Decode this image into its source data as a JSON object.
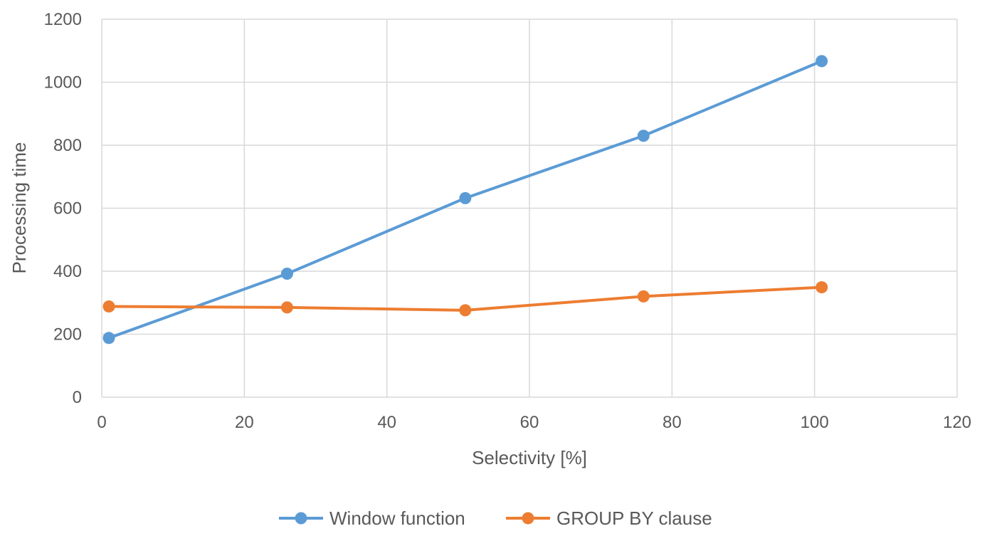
{
  "chart_data": {
    "type": "scatter",
    "title": "",
    "xlabel": "Selectivity [%]",
    "ylabel": "Processing time",
    "xlim": [
      0,
      120
    ],
    "ylim": [
      0,
      1200
    ],
    "x_ticks": [
      0,
      20,
      40,
      60,
      80,
      100,
      120
    ],
    "y_ticks": [
      0,
      200,
      400,
      600,
      800,
      1000,
      1200
    ],
    "grid": true,
    "legend_position": "bottom",
    "series": [
      {
        "name": "Window function",
        "color": "#5b9bd5",
        "marker": "circle",
        "x": [
          1,
          26,
          51,
          76,
          101
        ],
        "y": [
          188,
          392,
          632,
          830,
          1067
        ]
      },
      {
        "name": "GROUP BY clause",
        "color": "#ed7d31",
        "marker": "circle",
        "x": [
          1,
          26,
          51,
          76,
          101
        ],
        "y": [
          288,
          285,
          276,
          320,
          349
        ]
      }
    ]
  }
}
